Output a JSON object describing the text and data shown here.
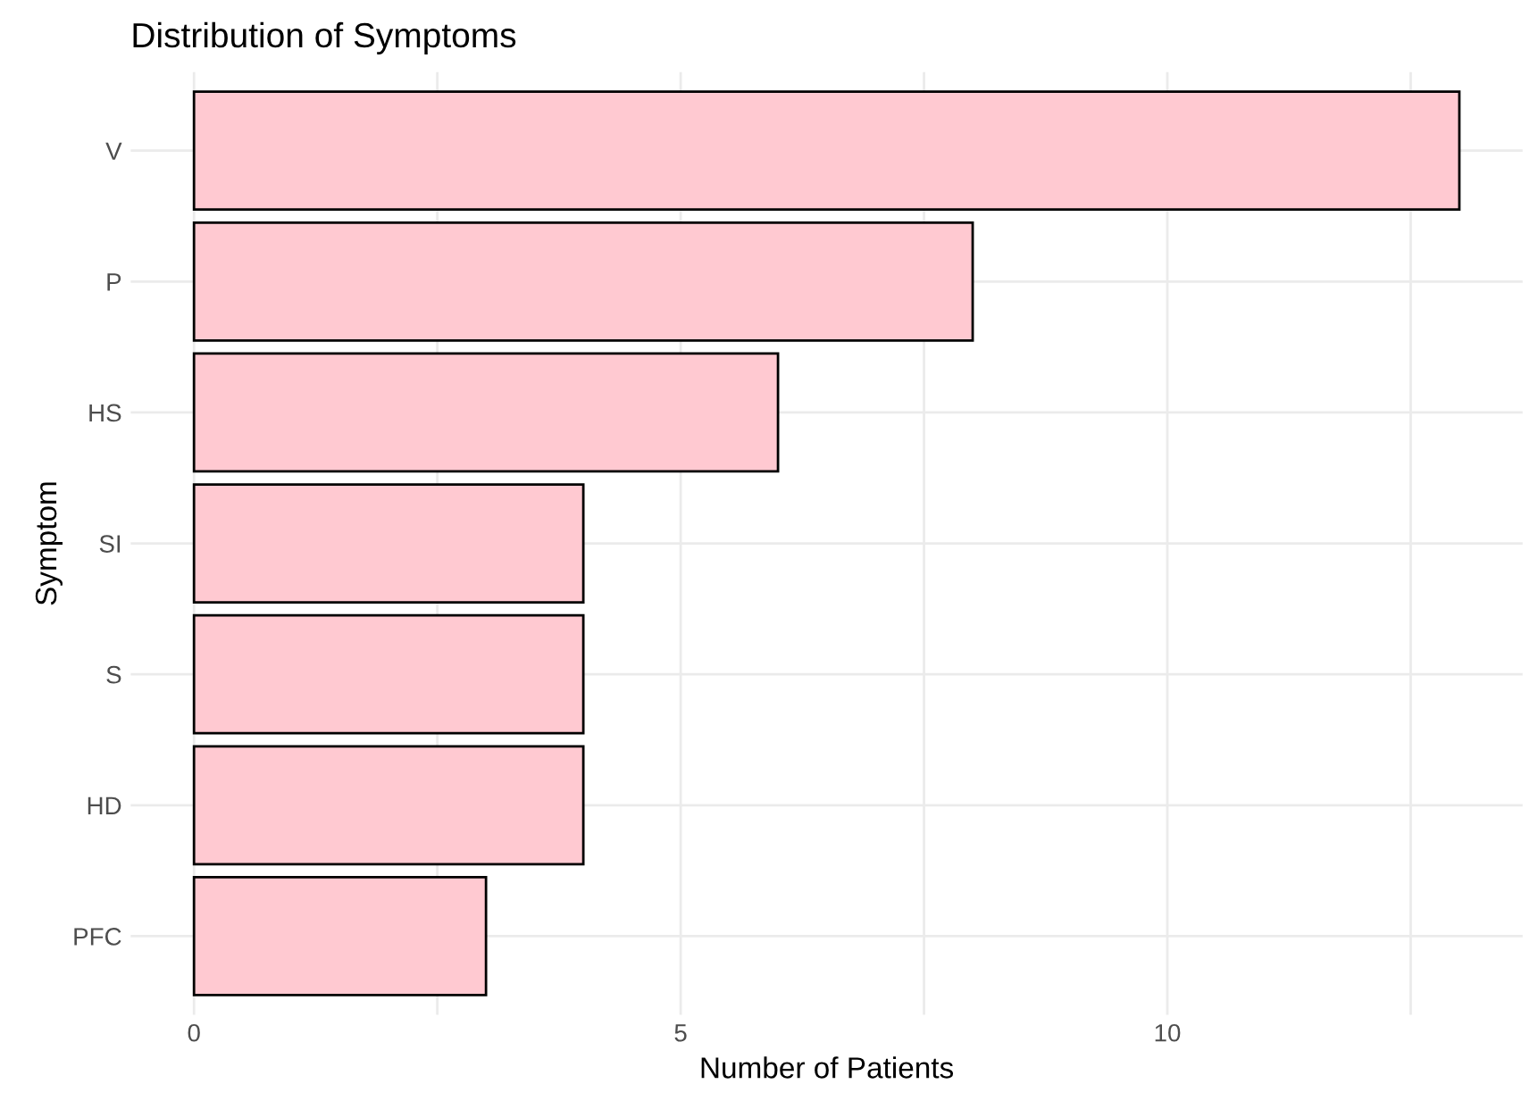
{
  "chart_data": {
    "type": "bar",
    "orientation": "horizontal",
    "title": "Distribution of Symptoms",
    "xlabel": "Number of Patients",
    "ylabel": "Symptom",
    "categories": [
      "V",
      "P",
      "HS",
      "SI",
      "S",
      "HD",
      "PFC"
    ],
    "values": [
      13,
      8,
      6,
      4,
      4,
      4,
      3
    ],
    "color": "#ffc9d1",
    "xlim": [
      -0.65,
      13.65
    ],
    "xticks": [
      0,
      5,
      10,
      {
        "value": 2.5,
        "label": null
      },
      {
        "value": 7.5,
        "label": null
      },
      {
        "value": 12.5,
        "label": null
      }
    ],
    "grid": true
  }
}
